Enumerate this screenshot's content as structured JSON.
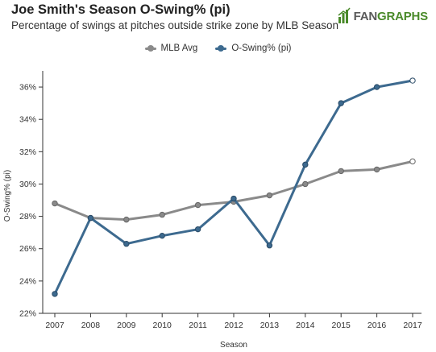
{
  "header": {
    "title": "Joe Smith's Season O-Swing% (pi)",
    "subtitle": "Percentage of swings at pitches outside strike zone by MLB Season",
    "logo_text_fan": "FAN",
    "logo_text_graphs": "GRAPHS"
  },
  "colors": {
    "mlb_avg": "#8a8a8a",
    "player": "#3d6a8f",
    "axis": "#333333",
    "logo_green": "#4a8a2a"
  },
  "chart_data": {
    "type": "line",
    "title": "Joe Smith's Season O-Swing% (pi)",
    "subtitle": "Percentage of swings at pitches outside strike zone by MLB Season",
    "xlabel": "Season",
    "ylabel": "O-Swing% (pi)",
    "x": [
      2007,
      2008,
      2009,
      2010,
      2011,
      2012,
      2013,
      2014,
      2015,
      2016,
      2017
    ],
    "ylim": [
      22,
      37
    ],
    "yticks": [
      22,
      24,
      26,
      28,
      30,
      32,
      34,
      36
    ],
    "ytick_labels": [
      "22%",
      "24%",
      "26%",
      "28%",
      "30%",
      "32%",
      "34%",
      "36%"
    ],
    "legend_position": "top-center",
    "grid": false,
    "series": [
      {
        "name": "MLB Avg",
        "color": "#8a8a8a",
        "values": [
          28.8,
          27.9,
          27.8,
          28.1,
          28.7,
          28.9,
          29.3,
          30.0,
          30.8,
          30.9,
          31.4
        ]
      },
      {
        "name": "O-Swing% (pi)",
        "color": "#3d6a8f",
        "values": [
          23.2,
          27.9,
          26.3,
          26.8,
          27.2,
          29.1,
          26.2,
          31.2,
          35.0,
          36.0,
          36.4
        ]
      }
    ]
  }
}
